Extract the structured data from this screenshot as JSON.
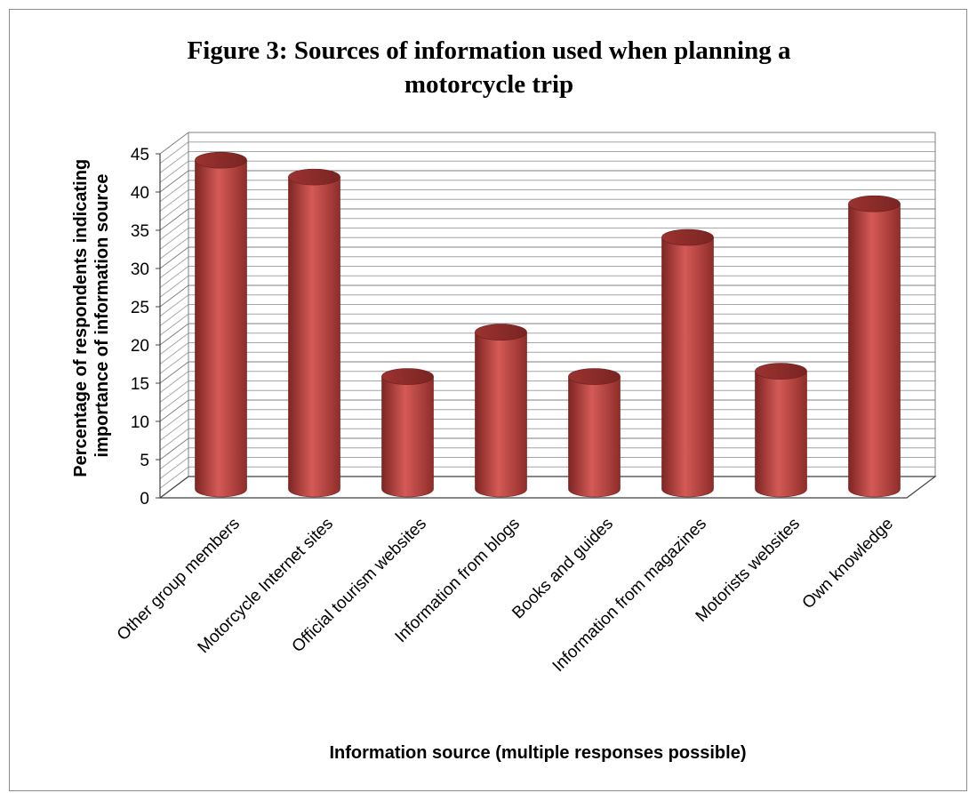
{
  "chart_data": {
    "type": "bar",
    "title": "Figure 3: Sources of information used when planning a motorcycle trip",
    "ylabel_lines": [
      "Percentage of respondents indicating",
      "importance of information source"
    ],
    "xlabel": "Information source (multiple responses possible)",
    "categories": [
      "Other group members",
      "Motorcycle Internet sites",
      "Official tourism websites",
      "Information from blogs",
      "Books and guides",
      "Information from magazines",
      "Motorists websites",
      "Own knowledge"
    ],
    "values": [
      43,
      40.8,
      14.7,
      20.5,
      14.7,
      32.9,
      15.4,
      37.3
    ],
    "ylim": [
      0,
      45
    ],
    "yticks": [
      0,
      5,
      10,
      15,
      20,
      25,
      30,
      35,
      40,
      45
    ],
    "grid": true,
    "legend": "none",
    "bar_shape": "3d-cylinder",
    "colors": {
      "bar": "#c0504d",
      "bar_dark": "#8b2a28",
      "bar_light": "#dc6a66",
      "grid": "#8c8c8c",
      "axis": "#000000"
    }
  }
}
